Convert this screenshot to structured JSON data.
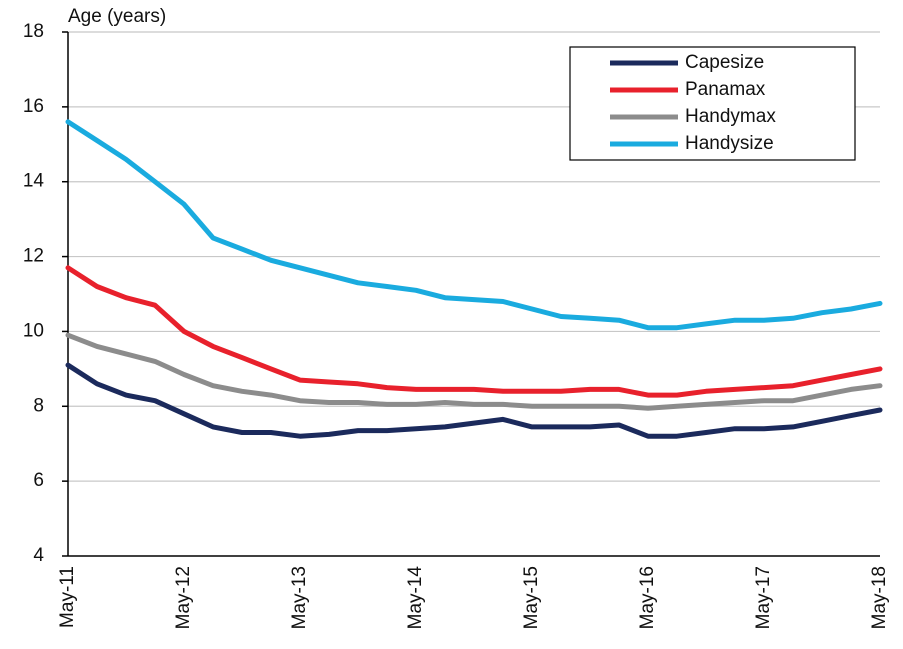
{
  "chart_data": {
    "type": "line",
    "y_axis_label": "Age (years)",
    "categories": [
      "May-11",
      null,
      null,
      null,
      "May-12",
      null,
      null,
      null,
      "May-13",
      null,
      null,
      null,
      "May-14",
      null,
      null,
      null,
      "May-15",
      null,
      null,
      null,
      "May-16",
      null,
      null,
      null,
      "May-17",
      null,
      null,
      null,
      "May-18"
    ],
    "series": [
      {
        "name": "Capesize",
        "color": "#1b2a5c",
        "values": [
          9.1,
          8.6,
          8.3,
          8.15,
          7.8,
          7.45,
          7.3,
          7.3,
          7.2,
          7.25,
          7.35,
          7.35,
          7.4,
          7.45,
          7.55,
          7.65,
          7.45,
          7.45,
          7.45,
          7.5,
          7.2,
          7.2,
          7.3,
          7.4,
          7.4,
          7.45,
          7.6,
          7.75,
          7.9
        ]
      },
      {
        "name": "Panamax",
        "color": "#e8212c",
        "values": [
          11.7,
          11.2,
          10.9,
          10.7,
          10.0,
          9.6,
          9.3,
          9.0,
          8.7,
          8.65,
          8.6,
          8.5,
          8.45,
          8.45,
          8.45,
          8.4,
          8.4,
          8.4,
          8.45,
          8.45,
          8.3,
          8.3,
          8.4,
          8.45,
          8.5,
          8.55,
          8.7,
          8.85,
          9.0
        ]
      },
      {
        "name": "Handymax",
        "color": "#8c8c8c",
        "values": [
          9.9,
          9.6,
          9.4,
          9.2,
          8.85,
          8.55,
          8.4,
          8.3,
          8.15,
          8.1,
          8.1,
          8.05,
          8.05,
          8.1,
          8.05,
          8.05,
          8.0,
          8.0,
          8.0,
          8.0,
          7.95,
          8.0,
          8.05,
          8.1,
          8.15,
          8.15,
          8.3,
          8.45,
          8.55
        ]
      },
      {
        "name": "Handysize",
        "color": "#1aabdf",
        "values": [
          15.6,
          15.1,
          14.6,
          14.0,
          13.4,
          12.5,
          12.2,
          11.9,
          11.7,
          11.5,
          11.3,
          11.2,
          11.1,
          10.9,
          10.85,
          10.8,
          10.6,
          10.4,
          10.35,
          10.3,
          10.1,
          10.1,
          10.2,
          10.3,
          10.3,
          10.35,
          10.5,
          10.6,
          10.75
        ]
      }
    ],
    "ylim": [
      4,
      18
    ],
    "yticks": [
      4,
      6,
      8,
      10,
      12,
      14,
      16,
      18
    ],
    "grid": true,
    "legend": "top-right"
  }
}
